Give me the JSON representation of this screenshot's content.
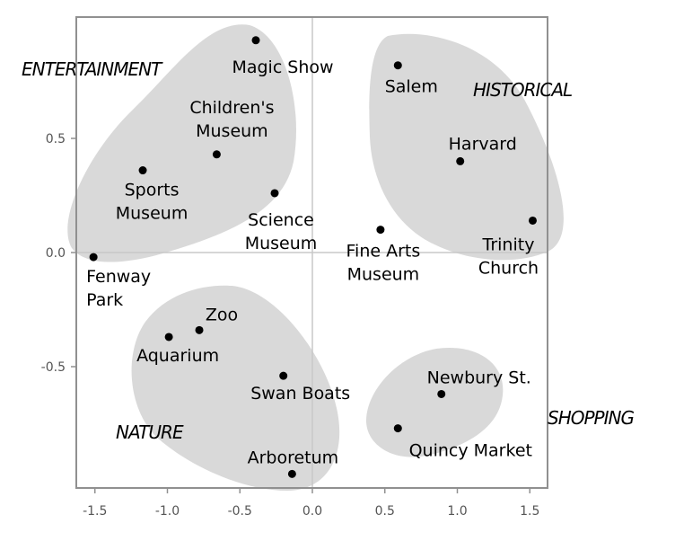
{
  "chart_data": {
    "type": "scatter",
    "title": "",
    "xlabel": "",
    "ylabel": "",
    "xlim": [
      -1.65,
      1.6
    ],
    "ylim": [
      -1.03,
      1.03
    ],
    "x_ticks": [
      -1.5,
      -1.0,
      -0.5,
      0.0,
      0.5,
      1.0,
      1.5
    ],
    "x_tick_labels": [
      "-1.5",
      "-1.0",
      "-0.5",
      "0.0",
      "0.5",
      "1.0",
      "1.5"
    ],
    "y_ticks": [
      0.5,
      0.0,
      -0.5
    ],
    "y_tick_labels": [
      "0.5",
      "0.0",
      "-0.5"
    ],
    "reference_lines": {
      "x": 0,
      "y": 0
    },
    "grid": false,
    "points": [
      {
        "label": [
          "Magic Show"
        ],
        "x": -0.39,
        "y": 0.93
      },
      {
        "label": [
          "Children's",
          "Museum"
        ],
        "x": -0.66,
        "y": 0.43
      },
      {
        "label": [
          "Sports",
          "Museum"
        ],
        "x": -1.17,
        "y": 0.36
      },
      {
        "label": [
          "Science",
          "Museum"
        ],
        "x": -0.26,
        "y": 0.26
      },
      {
        "label": [
          "Fenway",
          "Park"
        ],
        "x": -1.51,
        "y": -0.02
      },
      {
        "label": [
          "Salem"
        ],
        "x": 0.59,
        "y": 0.82
      },
      {
        "label": [
          "Harvard"
        ],
        "x": 1.02,
        "y": 0.4
      },
      {
        "label": [
          "Trinity",
          "Church"
        ],
        "x": 1.52,
        "y": 0.14
      },
      {
        "label": [
          "Fine Arts",
          "Museum"
        ],
        "x": 0.47,
        "y": 0.1
      },
      {
        "label": [
          "Zoo"
        ],
        "x": -0.78,
        "y": -0.34
      },
      {
        "label": [
          "Aquarium"
        ],
        "x": -0.99,
        "y": -0.37
      },
      {
        "label": [
          "Swan Boats"
        ],
        "x": -0.2,
        "y": -0.54
      },
      {
        "label": [
          "Arboretum"
        ],
        "x": -0.14,
        "y": -0.97
      },
      {
        "label": [
          "Newbury St."
        ],
        "x": 0.89,
        "y": -0.62
      },
      {
        "label": [
          "Quincy Market"
        ],
        "x": 0.59,
        "y": -0.77
      }
    ],
    "groups": [
      {
        "name": "ENTERTAINMENT"
      },
      {
        "name": "HISTORICAL"
      },
      {
        "name": "NATURE"
      },
      {
        "name": "SHOPPING"
      }
    ],
    "colors": {
      "region_fill": "#d9d9d9",
      "point": "#000000",
      "frame": "#909090",
      "axis_line": "#c8c8c8"
    }
  }
}
